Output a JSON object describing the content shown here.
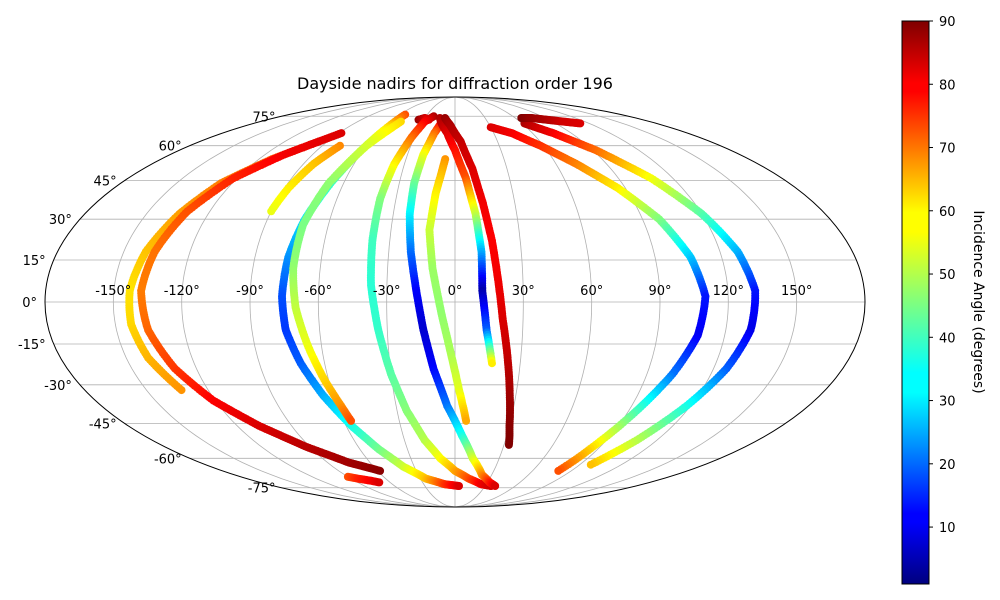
{
  "chart_data": {
    "type": "scatter",
    "title": "Dayside nadirs for diffraction order 196",
    "projection": "mollweide",
    "grid": true,
    "x_label": "",
    "y_label": "",
    "x_ticks": [
      "-150°",
      "-120°",
      "-90°",
      "-60°",
      "-30°",
      "0°",
      "30°",
      "60°",
      "90°",
      "120°",
      "150°"
    ],
    "x_tick_values": [
      -150,
      -120,
      -90,
      -60,
      -30,
      0,
      30,
      60,
      90,
      120,
      150
    ],
    "y_ticks": [
      "-75°",
      "-60°",
      "-45°",
      "-30°",
      "-15°",
      "0°",
      "15°",
      "30°",
      "45°",
      "60°",
      "75°"
    ],
    "y_tick_values": [
      -75,
      -60,
      -45,
      -30,
      -15,
      0,
      15,
      30,
      45,
      60,
      75
    ],
    "colorbar": {
      "label": "Incidence Angle (degrees)",
      "colormap": "jet",
      "range": [
        1,
        90
      ],
      "ticks": [
        "10",
        "20",
        "30",
        "40",
        "50",
        "60",
        "70",
        "80",
        "90"
      ],
      "tick_values": [
        10,
        20,
        30,
        40,
        50,
        60,
        70,
        80,
        90
      ]
    },
    "series": [
      {
        "points": [
          {
            "lon": -96,
            "lat": 62,
            "inc": 73
          },
          {
            "lon": -112,
            "lat": 54,
            "inc": 71
          },
          {
            "lon": -126,
            "lat": 44,
            "inc": 68
          },
          {
            "lon": -134,
            "lat": 32,
            "inc": 65
          },
          {
            "lon": -140,
            "lat": 18,
            "inc": 62
          },
          {
            "lon": -143,
            "lat": 4,
            "inc": 59
          },
          {
            "lon": -143,
            "lat": -8,
            "inc": 60
          },
          {
            "lon": -140,
            "lat": -20,
            "inc": 63
          },
          {
            "lon": -133,
            "lat": -32,
            "inc": 66
          }
        ]
      },
      {
        "points": [
          {
            "lon": -88,
            "lat": 66,
            "inc": 82
          },
          {
            "lon": -108,
            "lat": 56,
            "inc": 80
          },
          {
            "lon": -122,
            "lat": 46,
            "inc": 76
          },
          {
            "lon": -131,
            "lat": 33,
            "inc": 72
          },
          {
            "lon": -136,
            "lat": 18,
            "inc": 69
          },
          {
            "lon": -138,
            "lat": 4,
            "inc": 68
          },
          {
            "lon": -136,
            "lat": -10,
            "inc": 70
          },
          {
            "lon": -130,
            "lat": -24,
            "inc": 74
          },
          {
            "lon": -121,
            "lat": -36,
            "inc": 79
          },
          {
            "lon": -108,
            "lat": -46,
            "inc": 82
          },
          {
            "lon": -92,
            "lat": -55,
            "inc": 85
          },
          {
            "lon": -75,
            "lat": -62,
            "inc": 87
          },
          {
            "lon": -58,
            "lat": -66,
            "inc": 89
          }
        ]
      },
      {
        "points": [
          {
            "lon": -90,
            "lat": -69,
            "inc": 72
          },
          {
            "lon": -84,
            "lat": -70,
            "inc": 76
          },
          {
            "lon": -76,
            "lat": -71,
            "inc": 79
          },
          {
            "lon": -70,
            "lat": -72,
            "inc": 82
          }
        ]
      },
      {
        "points": [
          {
            "lon": -78,
            "lat": 60,
            "inc": 67
          },
          {
            "lon": -84,
            "lat": 52,
            "inc": 62
          },
          {
            "lon": -88,
            "lat": 42,
            "inc": 58
          },
          {
            "lon": -90,
            "lat": 33,
            "inc": 55
          }
        ]
      },
      {
        "points": [
          {
            "lon": -54,
            "lat": 76,
            "inc": 72
          },
          {
            "lon": -57,
            "lat": 68,
            "inc": 58
          },
          {
            "lon": -62,
            "lat": 56,
            "inc": 48
          },
          {
            "lon": -67,
            "lat": 44,
            "inc": 40
          },
          {
            "lon": -72,
            "lat": 30,
            "inc": 32
          },
          {
            "lon": -75,
            "lat": 16,
            "inc": 25
          },
          {
            "lon": -76,
            "lat": 2,
            "inc": 19
          },
          {
            "lon": -75,
            "lat": -10,
            "inc": 17
          },
          {
            "lon": -71,
            "lat": -22,
            "inc": 20
          },
          {
            "lon": -65,
            "lat": -34,
            "inc": 27
          },
          {
            "lon": -57,
            "lat": -46,
            "inc": 36
          },
          {
            "lon": -48,
            "lat": -56,
            "inc": 44
          },
          {
            "lon": -38,
            "lat": -64,
            "inc": 52
          },
          {
            "lon": -25,
            "lat": -70,
            "inc": 62
          },
          {
            "lon": -10,
            "lat": -73,
            "inc": 74
          },
          {
            "lon": 4,
            "lat": -74,
            "inc": 82
          }
        ]
      },
      {
        "points": [
          {
            "lon": -50,
            "lat": 72,
            "inc": 60
          },
          {
            "lon": -60,
            "lat": 60,
            "inc": 53
          },
          {
            "lon": -68,
            "lat": 44,
            "inc": 47
          },
          {
            "lon": -72,
            "lat": 28,
            "inc": 45
          },
          {
            "lon": -72,
            "lat": 12,
            "inc": 47
          },
          {
            "lon": -70,
            "lat": -2,
            "inc": 51
          },
          {
            "lon": -66,
            "lat": -16,
            "inc": 55
          },
          {
            "lon": -62,
            "lat": -28,
            "inc": 60
          },
          {
            "lon": -58,
            "lat": -38,
            "inc": 66
          },
          {
            "lon": -56,
            "lat": -44,
            "inc": 72
          }
        ]
      },
      {
        "points": [
          {
            "lon": -35,
            "lat": 73,
            "inc": 88
          },
          {
            "lon": -30,
            "lat": 74,
            "inc": 84
          },
          {
            "lon": -25,
            "lat": 73,
            "inc": 80
          }
        ]
      },
      {
        "points": [
          {
            "lon": -22,
            "lat": 75,
            "inc": 86
          },
          {
            "lon": -28,
            "lat": 72,
            "inc": 80
          },
          {
            "lon": -32,
            "lat": 64,
            "inc": 70
          },
          {
            "lon": -36,
            "lat": 52,
            "inc": 58
          },
          {
            "lon": -38,
            "lat": 38,
            "inc": 46
          },
          {
            "lon": -38,
            "lat": 22,
            "inc": 40
          },
          {
            "lon": -37,
            "lat": 6,
            "inc": 38
          },
          {
            "lon": -34,
            "lat": -10,
            "inc": 39
          },
          {
            "lon": -30,
            "lat": -26,
            "inc": 42
          },
          {
            "lon": -25,
            "lat": -40,
            "inc": 46
          },
          {
            "lon": -18,
            "lat": -52,
            "inc": 50
          },
          {
            "lon": -10,
            "lat": -60,
            "inc": 56
          },
          {
            "lon": 0,
            "lat": -66,
            "inc": 64
          },
          {
            "lon": 12,
            "lat": -70,
            "inc": 72
          },
          {
            "lon": 25,
            "lat": -73,
            "inc": 80
          },
          {
            "lon": 36,
            "lat": -74,
            "inc": 83
          }
        ]
      },
      {
        "points": [
          {
            "lon": -12,
            "lat": 72,
            "inc": 84
          },
          {
            "lon": -16,
            "lat": 66,
            "inc": 70
          },
          {
            "lon": -20,
            "lat": 56,
            "inc": 56
          },
          {
            "lon": -22,
            "lat": 44,
            "inc": 44
          },
          {
            "lon": -22,
            "lat": 32,
            "inc": 34
          },
          {
            "lon": -20,
            "lat": 18,
            "inc": 22
          },
          {
            "lon": -17,
            "lat": 4,
            "inc": 12
          },
          {
            "lon": -14,
            "lat": -10,
            "inc": 8
          },
          {
            "lon": -10,
            "lat": -24,
            "inc": 12
          },
          {
            "lon": -4,
            "lat": -38,
            "inc": 22
          },
          {
            "lon": 4,
            "lat": -50,
            "inc": 36
          },
          {
            "lon": 12,
            "lat": -60,
            "inc": 52
          },
          {
            "lon": 22,
            "lat": -68,
            "inc": 66
          },
          {
            "lon": 32,
            "lat": -72,
            "inc": 76
          },
          {
            "lon": 40,
            "lat": -74,
            "inc": 82
          }
        ]
      },
      {
        "points": [
          {
            "lon": -6,
            "lat": 54,
            "inc": 66
          },
          {
            "lon": -10,
            "lat": 40,
            "inc": 58
          },
          {
            "lon": -12,
            "lat": 26,
            "inc": 52
          },
          {
            "lon": -10,
            "lat": 12,
            "inc": 48
          },
          {
            "lon": -6,
            "lat": -4,
            "inc": 47
          },
          {
            "lon": -2,
            "lat": -18,
            "inc": 49
          },
          {
            "lon": 2,
            "lat": -32,
            "inc": 54
          },
          {
            "lon": 6,
            "lat": -44,
            "inc": 64
          }
        ]
      },
      {
        "points": [
          {
            "lon": -15,
            "lat": 74,
            "inc": 86
          },
          {
            "lon": -12,
            "lat": 71,
            "inc": 85
          },
          {
            "lon": -6,
            "lat": 66,
            "inc": 82
          },
          {
            "lon": 0,
            "lat": 58,
            "inc": 78
          },
          {
            "lon": 6,
            "lat": 46,
            "inc": 72
          },
          {
            "lon": 10,
            "lat": 32,
            "inc": 52
          },
          {
            "lon": 12,
            "lat": 18,
            "inc": 28
          },
          {
            "lon": 12,
            "lat": 4,
            "inc": 5
          },
          {
            "lon": 14,
            "lat": -10,
            "inc": 20
          },
          {
            "lon": 17,
            "lat": -22,
            "inc": 58
          }
        ]
      },
      {
        "points": [
          {
            "lon": -10,
            "lat": 74,
            "inc": 88
          },
          {
            "lon": -4,
            "lat": 70,
            "inc": 86
          },
          {
            "lon": 4,
            "lat": 62,
            "inc": 84
          },
          {
            "lon": 10,
            "lat": 50,
            "inc": 82
          },
          {
            "lon": 14,
            "lat": 36,
            "inc": 80
          },
          {
            "lon": 17,
            "lat": 22,
            "inc": 79
          },
          {
            "lon": 19,
            "lat": 8,
            "inc": 80
          },
          {
            "lon": 21,
            "lat": -6,
            "inc": 82
          },
          {
            "lon": 24,
            "lat": -20,
            "inc": 84
          },
          {
            "lon": 27,
            "lat": -34,
            "inc": 87
          },
          {
            "lon": 30,
            "lat": -46,
            "inc": 89
          },
          {
            "lon": 33,
            "lat": -54,
            "inc": 90
          }
        ]
      },
      {
        "points": [
          {
            "lon": 30,
            "lat": 69,
            "inc": 82
          },
          {
            "lon": 44,
            "lat": 66,
            "inc": 80
          },
          {
            "lon": 58,
            "lat": 60,
            "inc": 75
          },
          {
            "lon": 72,
            "lat": 52,
            "inc": 68
          },
          {
            "lon": 86,
            "lat": 42,
            "inc": 58
          },
          {
            "lon": 98,
            "lat": 30,
            "inc": 46
          },
          {
            "lon": 106,
            "lat": 16,
            "inc": 30
          },
          {
            "lon": 110,
            "lat": 2,
            "inc": 14
          },
          {
            "lon": 108,
            "lat": -12,
            "inc": 11
          },
          {
            "lon": 102,
            "lat": -26,
            "inc": 22
          },
          {
            "lon": 94,
            "lat": -40,
            "inc": 40
          },
          {
            "lon": 86,
            "lat": -54,
            "inc": 58
          },
          {
            "lon": 80,
            "lat": -66,
            "inc": 72
          }
        ]
      },
      {
        "points": [
          {
            "lon": 62,
            "lat": 71,
            "inc": 86
          },
          {
            "lon": 76,
            "lat": 66,
            "inc": 80
          },
          {
            "lon": 92,
            "lat": 58,
            "inc": 70
          },
          {
            "lon": 108,
            "lat": 46,
            "inc": 56
          },
          {
            "lon": 120,
            "lat": 32,
            "inc": 42
          },
          {
            "lon": 128,
            "lat": 18,
            "inc": 28
          },
          {
            "lon": 132,
            "lat": 4,
            "inc": 14
          },
          {
            "lon": 131,
            "lat": -10,
            "inc": 10
          },
          {
            "lon": 126,
            "lat": -24,
            "inc": 20
          },
          {
            "lon": 118,
            "lat": -38,
            "inc": 36
          },
          {
            "lon": 108,
            "lat": -52,
            "inc": 50
          },
          {
            "lon": 98,
            "lat": -63,
            "inc": 62
          }
        ]
      },
      {
        "points": [
          {
            "lon": 66,
            "lat": 74,
            "inc": 90
          },
          {
            "lon": 76,
            "lat": 74,
            "inc": 88
          },
          {
            "lon": 88,
            "lat": 73,
            "inc": 86
          },
          {
            "lon": 100,
            "lat": 72,
            "inc": 83
          },
          {
            "lon": 112,
            "lat": 71,
            "inc": 82
          }
        ]
      }
    ]
  }
}
